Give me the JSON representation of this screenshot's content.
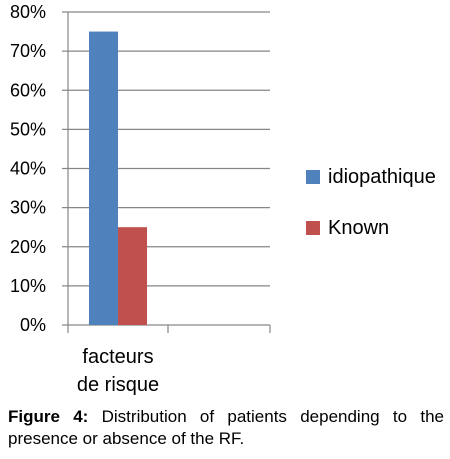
{
  "chart_data": {
    "type": "bar",
    "categories": [
      "facteurs de risque"
    ],
    "category_lines": [
      [
        "facteurs",
        "de risque"
      ]
    ],
    "series": [
      {
        "name": "idiopathique",
        "values": [
          75
        ],
        "color": "#4f81bd"
      },
      {
        "name": "Known",
        "values": [
          25
        ],
        "color": "#c0504d"
      }
    ],
    "ylim": [
      0,
      80
    ],
    "yticks": [
      "0%",
      "10%",
      "20%",
      "30%",
      "40%",
      "50%",
      "60%",
      "70%",
      "80%"
    ],
    "ytick_values": [
      0,
      10,
      20,
      30,
      40,
      50,
      60,
      70,
      80
    ],
    "grid": true,
    "legend_position": "right"
  },
  "legend": {
    "items": [
      {
        "label": "idiopathique",
        "color": "#4f81bd"
      },
      {
        "label": "Known",
        "color": "#c0504d"
      }
    ]
  },
  "caption": {
    "label": "Figure 4:",
    "text": "Distribution of patients depending to the presence or absence of the RF."
  }
}
